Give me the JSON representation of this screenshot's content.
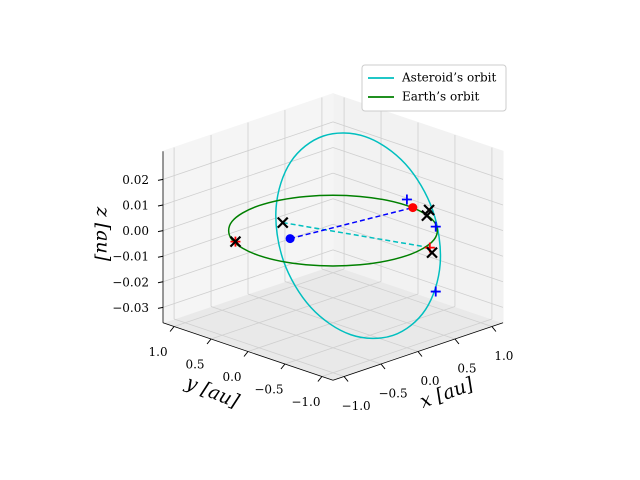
{
  "chart_data": {
    "type": "line3d",
    "legend": "upper right",
    "xlabel": "x [au]",
    "ylabel": "y [au]",
    "zlabel": "z [au]",
    "xlim": [
      -1.15,
      1.15
    ],
    "ylim": [
      -1.15,
      1.15
    ],
    "zlim": [
      -0.036,
      0.031
    ],
    "xticks": [
      {
        "value": -1,
        "label": "−1.0"
      },
      {
        "value": -0.5,
        "label": "−0.5"
      },
      {
        "value": 0,
        "label": "0.0"
      },
      {
        "value": 0.5,
        "label": "0.5"
      },
      {
        "value": 1,
        "label": "1.0"
      }
    ],
    "yticks": [
      {
        "value": -1,
        "label": "−1.0"
      },
      {
        "value": -0.5,
        "label": "−0.5"
      },
      {
        "value": 0,
        "label": "0.0"
      },
      {
        "value": 0.5,
        "label": "0.5"
      },
      {
        "value": 1,
        "label": "1.0"
      }
    ],
    "zticks": [
      {
        "value": -0.03,
        "label": "−0.03"
      },
      {
        "value": -0.02,
        "label": "−0.02"
      },
      {
        "value": -0.01,
        "label": "−0.01"
      },
      {
        "value": 0,
        "label": "0.00"
      },
      {
        "value": 0.01,
        "label": "0.01"
      },
      {
        "value": 0.02,
        "label": "0.02"
      }
    ],
    "series": [
      {
        "color": "#00bfbf",
        "linestyle": "dashed",
        "marker": "none",
        "x": [
          -0.18,
          0.315
        ],
        "y": [
          0.5,
          -0.995
        ],
        "z": [
          0,
          0
        ]
      },
      {
        "color": "#0000ff",
        "linestyle": "dashed",
        "marker": "none",
        "x": [
          -0.45,
          1.0
        ],
        "y": [
          0.13,
          -0.08
        ],
        "z": [
          0,
          0
        ]
      },
      {
        "name": "Asteroid’s orbit",
        "color": "#00bfbf",
        "linestyle": "solid",
        "marker": "none",
        "closed": true,
        "x": [
          0.24,
          0.561,
          0.777,
          0.83,
          0.707,
          0.439,
          0.1,
          -0.221,
          -0.437,
          -0.49,
          -0.367,
          -0.099
        ],
        "y": [
          0.37,
          0.123,
          -0.203,
          -0.52,
          -0.743,
          -0.813,
          -0.71,
          -0.463,
          -0.137,
          0.18,
          0.403,
          0.473
        ],
        "z": [
          0.031,
          0.03,
          0.0204,
          0.0048,
          -0.0126,
          -0.0272,
          -0.035,
          -0.034,
          -0.0244,
          -0.0088,
          0.0086,
          0.0232
        ]
      },
      {
        "name": "Earth’s orbit",
        "color": "#008000",
        "linestyle": "solid",
        "marker": "none",
        "closed": true,
        "x": [
          1,
          0.866,
          0.5,
          0,
          -0.5,
          -0.866,
          -1,
          -0.866,
          -0.5,
          0,
          0.5,
          0.866
        ],
        "y": [
          0,
          0.5,
          0.866,
          1,
          0.866,
          0.5,
          0,
          -0.5,
          -0.866,
          -1,
          -0.866,
          -0.5
        ],
        "z": [
          0,
          0,
          0,
          0,
          0,
          0,
          0,
          0,
          0,
          0,
          0,
          0
        ]
      },
      {
        "color": "#ff0000",
        "linestyle": "none",
        "marker": "+",
        "x": [
          -0.88,
          0.315
        ],
        "y": [
          0.44,
          -0.995
        ],
        "z": [
          0,
          0
        ]
      },
      {
        "color": "#0000ff",
        "linestyle": "none",
        "marker": "+",
        "x": [
          0.61,
          0.775,
          0.5
        ],
        "y": [
          -0.39,
          -0.615,
          -0.89
        ],
        "z": [
          0.01,
          0,
          -0.02
        ]
      },
      {
        "color": "#000000",
        "linestyle": "none",
        "marker": "x",
        "x": [
          -0.18,
          0.935,
          0.96,
          0.23,
          -0.88
        ],
        "y": [
          0.5,
          -0.335,
          -0.34,
          -1.11,
          0.44
        ],
        "z": [
          0,
          0,
          0.002,
          0,
          0
        ]
      },
      {
        "color": "#0000ff",
        "linestyle": "none",
        "marker": "o",
        "x": [
          -0.45
        ],
        "y": [
          0.13
        ],
        "z": [
          0
        ]
      },
      {
        "color": "#ff0000",
        "linestyle": "none",
        "marker": "o",
        "x": [
          1.0
        ],
        "y": [
          -0.08
        ],
        "z": [
          0
        ]
      }
    ]
  }
}
